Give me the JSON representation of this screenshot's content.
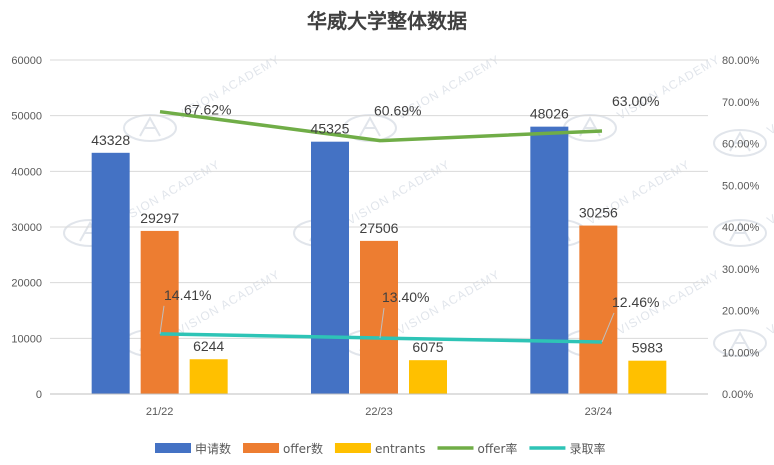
{
  "chart_data": {
    "type": "bar",
    "title": "华威大学整体数据",
    "categories": [
      "21/22",
      "22/23",
      "23/24"
    ],
    "series": [
      {
        "name": "申请数",
        "type": "bar",
        "axis": "left",
        "color": "#4472C4",
        "values": [
          43328,
          45325,
          48026
        ],
        "labels": [
          "43328",
          "45325",
          "48026"
        ]
      },
      {
        "name": "offer数",
        "type": "bar",
        "axis": "left",
        "color": "#ED7D31",
        "values": [
          29297,
          27506,
          30256
        ],
        "labels": [
          "29297",
          "27506",
          "30256"
        ]
      },
      {
        "name": "entrants",
        "type": "bar",
        "axis": "left",
        "color": "#FFC000",
        "values": [
          6244,
          6075,
          5983
        ],
        "labels": [
          "6244",
          "6075",
          "5983"
        ]
      },
      {
        "name": "offer率",
        "type": "line",
        "axis": "right",
        "color": "#70AD47",
        "values": [
          67.62,
          60.69,
          63.0
        ],
        "labels": [
          "67.62%",
          "60.69%",
          "63.00%"
        ]
      },
      {
        "name": "录取率",
        "type": "line",
        "axis": "right",
        "color": "#2EC4B6",
        "values": [
          14.41,
          13.4,
          12.46
        ],
        "labels": [
          "14.41%",
          "13.40%",
          "12.46%"
        ]
      }
    ],
    "y_left": {
      "min": 0,
      "max": 60000,
      "ticks": [
        "0",
        "10000",
        "20000",
        "30000",
        "40000",
        "50000",
        "60000"
      ]
    },
    "y_right": {
      "min": 0,
      "max": 80,
      "ticks": [
        "0.00%",
        "10.00%",
        "20.00%",
        "30.00%",
        "40.00%",
        "50.00%",
        "60.00%",
        "70.00%",
        "80.00%"
      ]
    },
    "legend_position": "bottom",
    "grid": "horizontal"
  },
  "watermark": {
    "text": "VISION ACADEMY"
  }
}
